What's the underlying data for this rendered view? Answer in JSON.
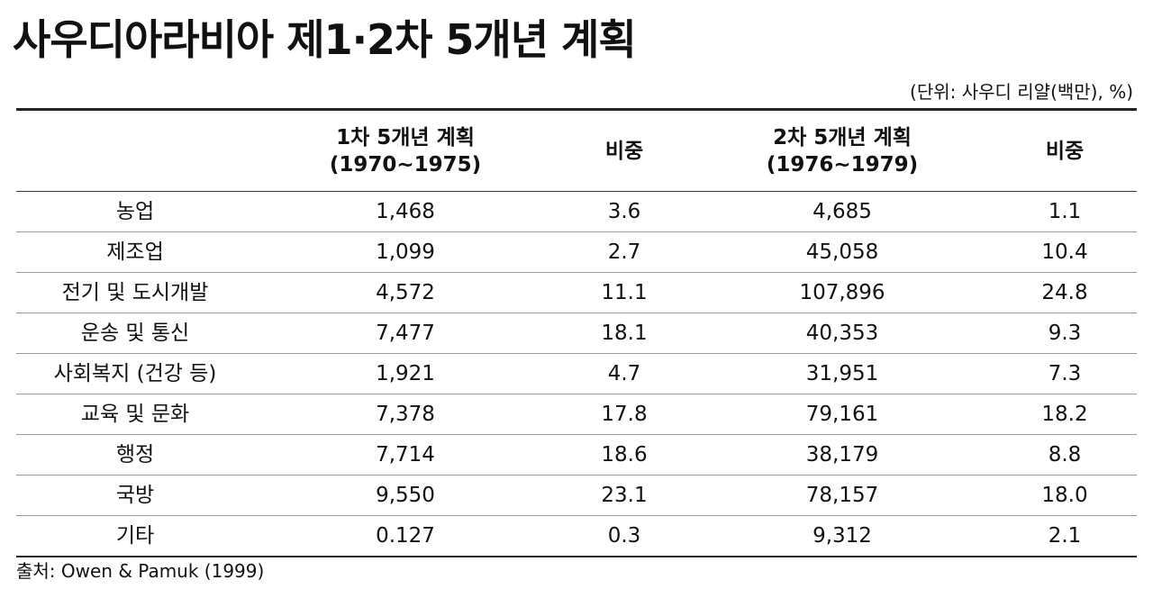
{
  "title": "사우디아라비아 제1·2차 5개년 계획",
  "unit": "(단위: 사우디 리얄(백만), %)",
  "table": {
    "header": [
      [
        ""
      ],
      [
        "1차 5개년 계획",
        "(1970~1975)"
      ],
      [
        "비중"
      ],
      [
        "2차 5개년 계획",
        "(1976~1979)"
      ],
      [
        "비중"
      ]
    ],
    "rows": [
      [
        "농업",
        "1,468",
        "3.6",
        "4,685",
        "1.1"
      ],
      [
        "제조업",
        "1,099",
        "2.7",
        "45,058",
        "10.4"
      ],
      [
        "전기 및 도시개발",
        "4,572",
        "11.1",
        "107,896",
        "24.8"
      ],
      [
        "운송 및 통신",
        "7,477",
        "18.1",
        "40,353",
        "9.3"
      ],
      [
        "사회복지 (건강 등)",
        "1,921",
        "4.7",
        "31,951",
        "7.3"
      ],
      [
        "교육 및 문화",
        "7,378",
        "17.8",
        "79,161",
        "18.2"
      ],
      [
        "행정",
        "7,714",
        "18.6",
        "38,179",
        "8.8"
      ],
      [
        "국방",
        "9,550",
        "23.1",
        "78,157",
        "18.0"
      ],
      [
        "기타",
        "0.127",
        "0.3",
        "9,312",
        "2.1"
      ]
    ]
  },
  "source": "출처: Owen & Pamuk (1999)"
}
